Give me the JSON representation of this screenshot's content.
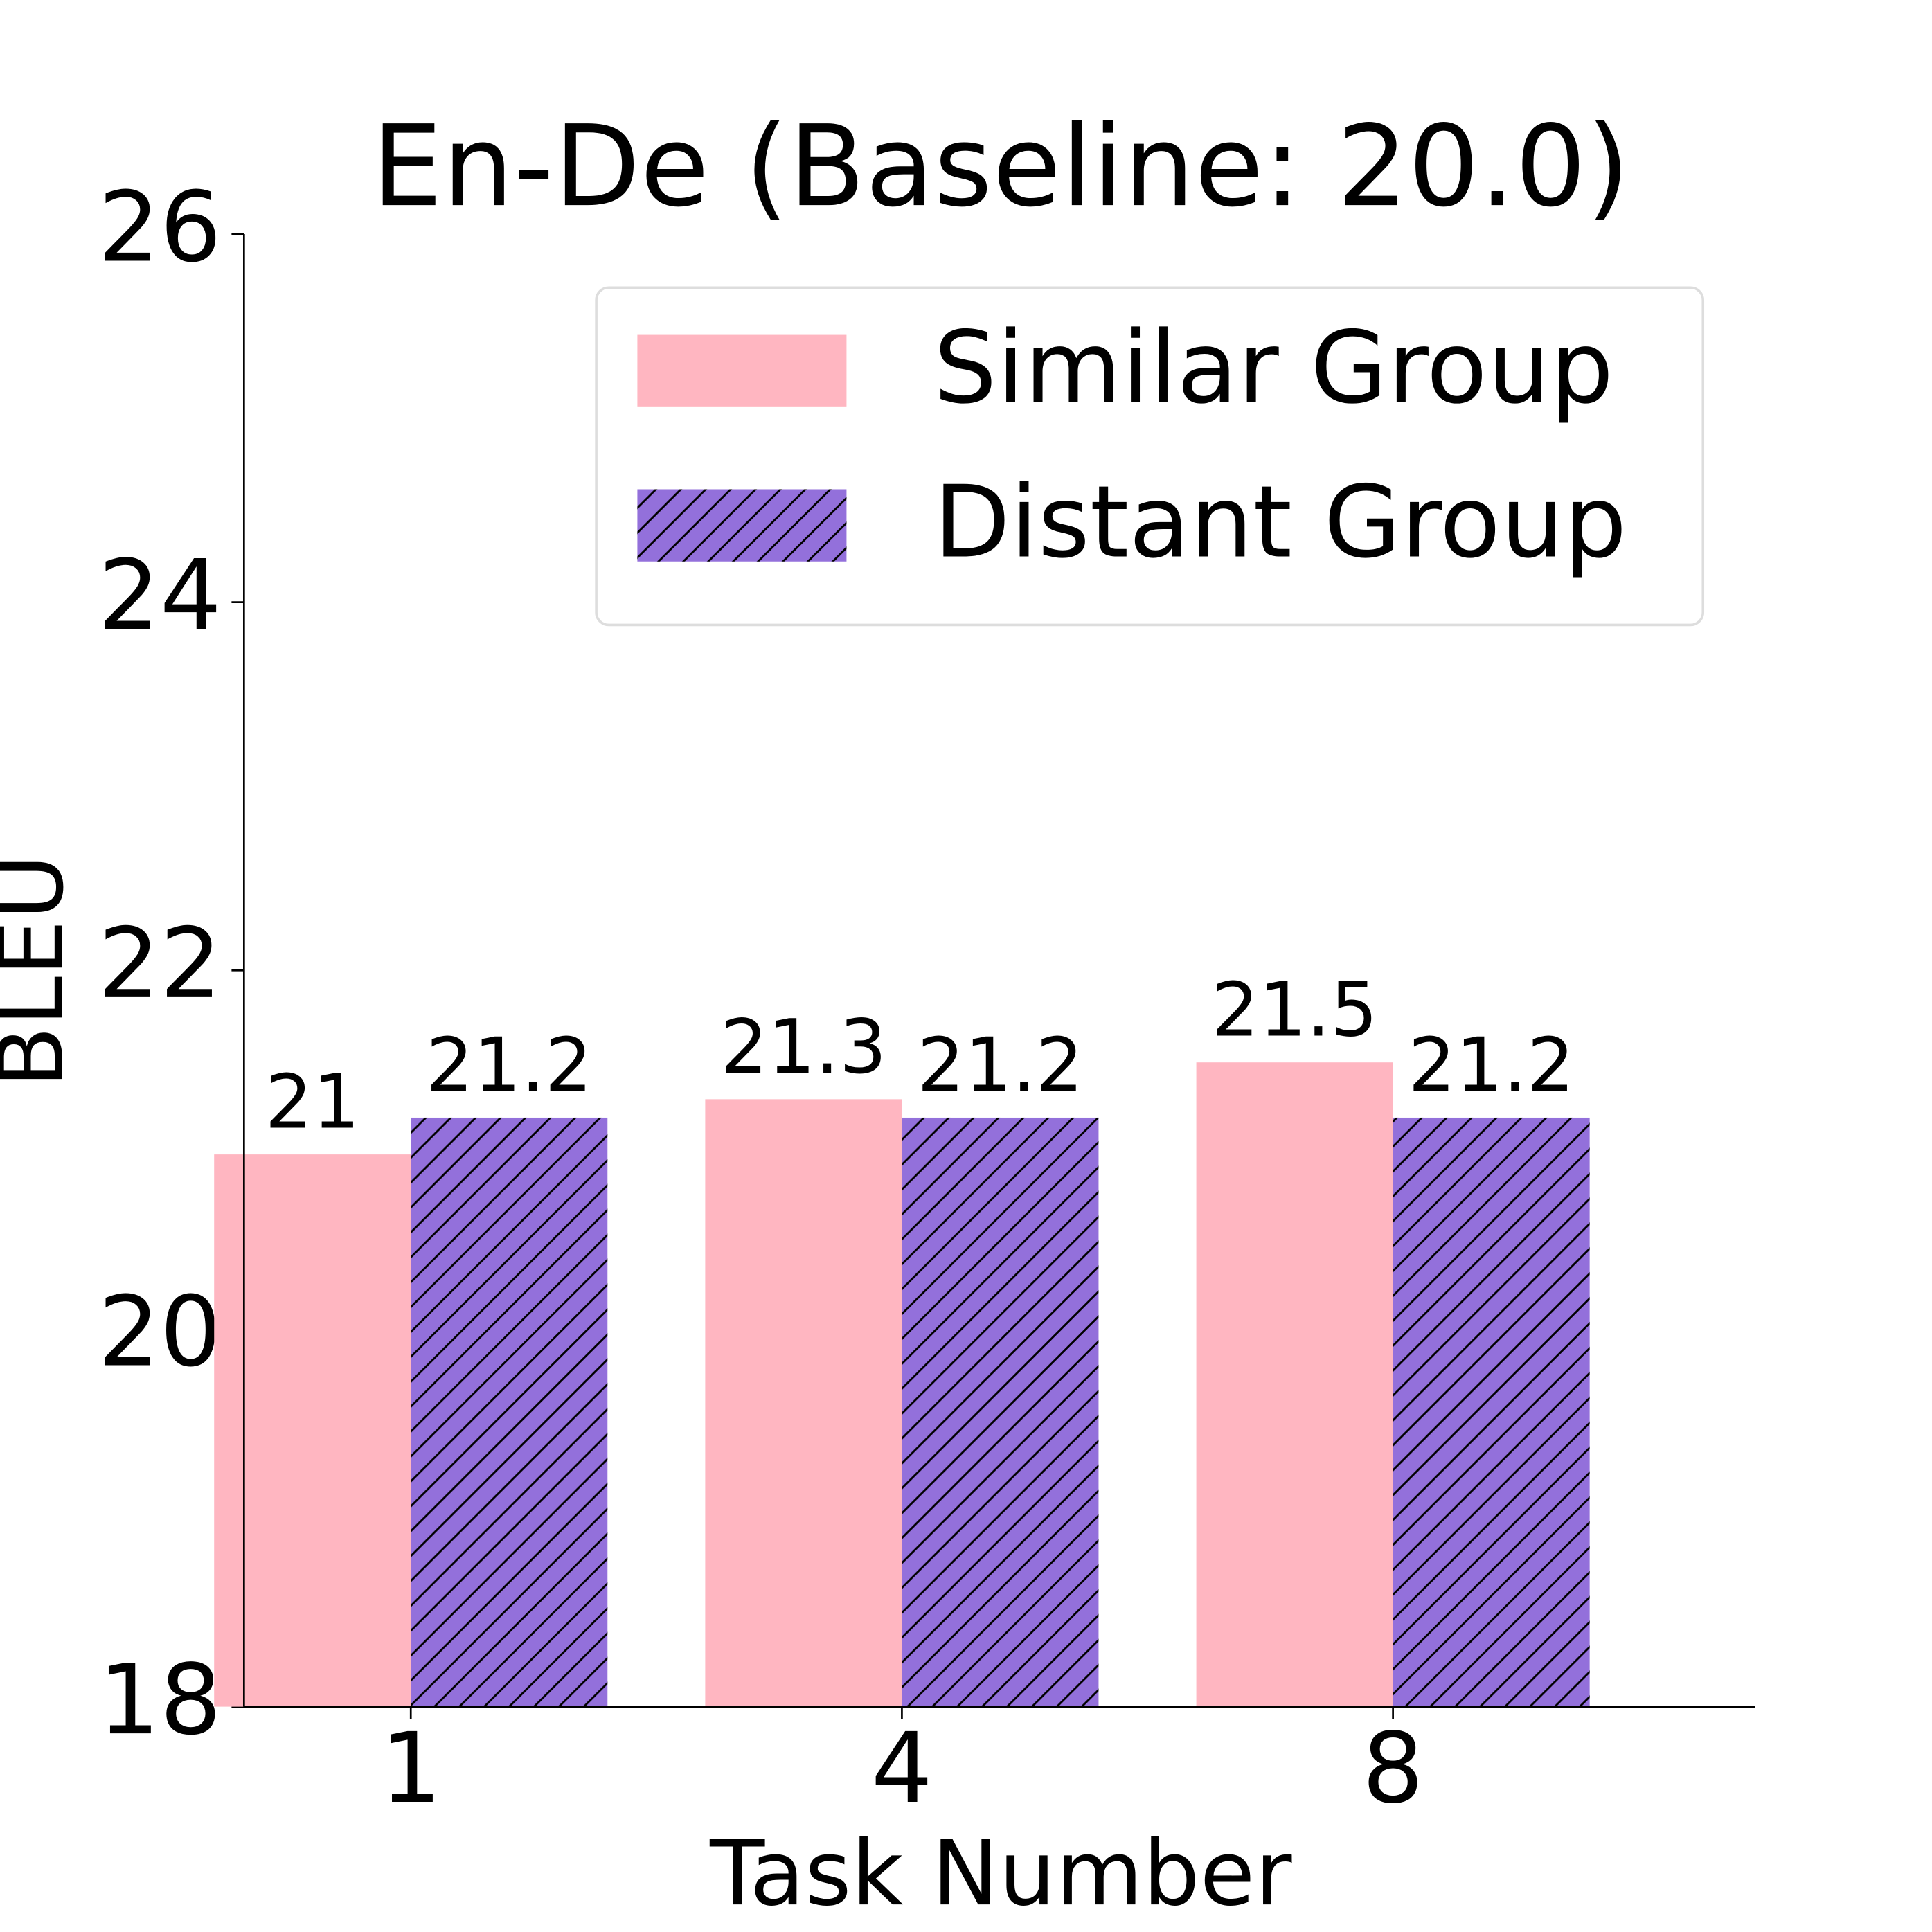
{
  "chart_data": {
    "type": "bar",
    "title": "En-De (Baseline: 20.0)",
    "x_label": "Task Number",
    "y_label": "BLEU",
    "categories": [
      "1",
      "4",
      "8"
    ],
    "series": [
      {
        "name": "Similar Group",
        "color": "#ffb6c1",
        "values": [
          21,
          21.3,
          21.5
        ]
      },
      {
        "name": "Distant Group",
        "color": "#9370db",
        "hatch": "//",
        "values": [
          21.2,
          21.2,
          21.2
        ]
      }
    ],
    "ylim": [
      18,
      26
    ],
    "yticks": [
      18,
      20,
      22,
      24,
      26
    ],
    "grid": false,
    "legend": "upper right"
  }
}
